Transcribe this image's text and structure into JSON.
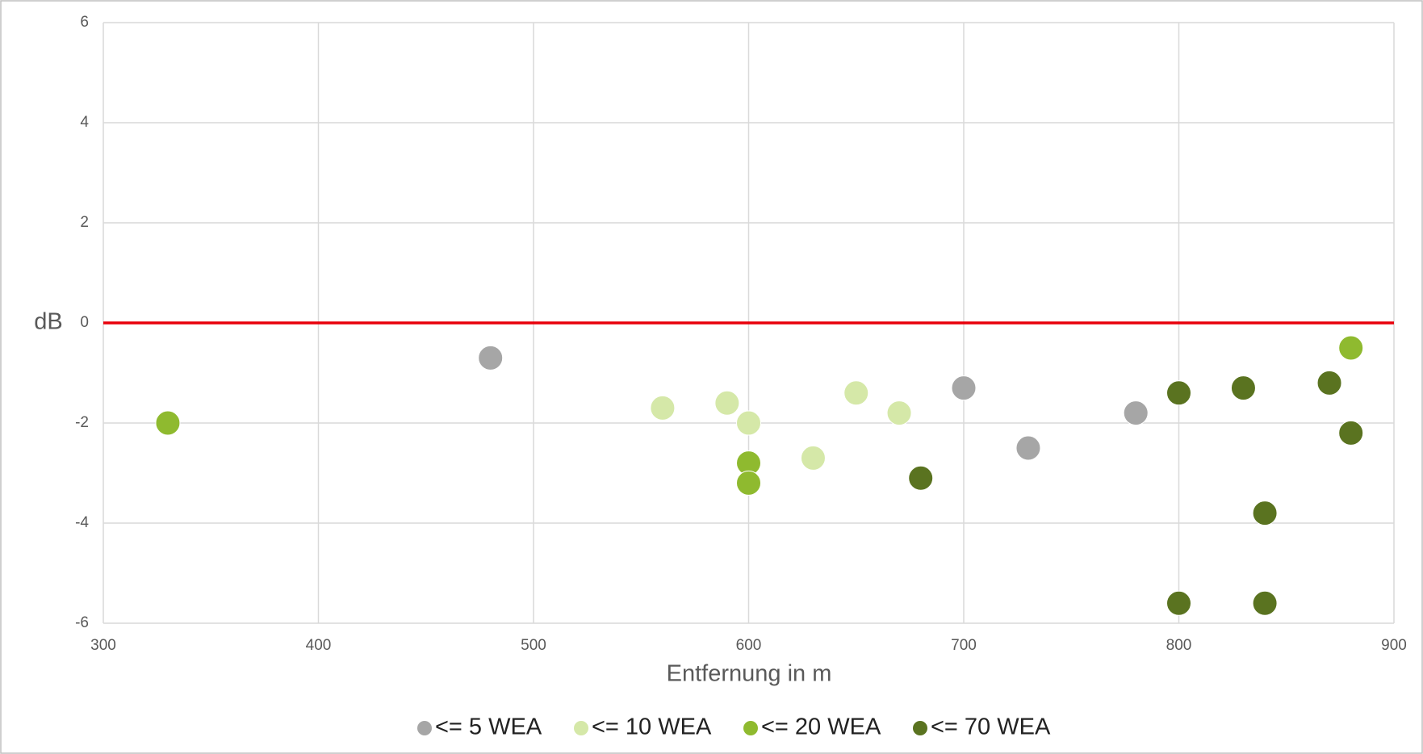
{
  "chart_data": {
    "type": "scatter",
    "x_label": "Entfernung in m",
    "y_label": "dB",
    "xlim": [
      300,
      900
    ],
    "xticks": [
      300,
      400,
      500,
      600,
      700,
      800,
      900
    ],
    "ylim": [
      -6,
      6
    ],
    "yticks": [
      -6,
      -4,
      -2,
      0,
      2,
      4,
      6
    ],
    "grid": true,
    "reference_line": {
      "y": 0,
      "color": "#e8000b"
    },
    "legend": "bottom",
    "series": [
      {
        "name": "<= 5 WEA",
        "color": "#a6a6a6",
        "x": [
          480,
          700,
          730,
          780
        ],
        "y": [
          -0.7,
          -1.3,
          -2.5,
          -1.8
        ]
      },
      {
        "name": "<= 10 WEA",
        "color": "#d5e8a8",
        "x": [
          560,
          590,
          600,
          630,
          650,
          670
        ],
        "y": [
          -1.7,
          -1.6,
          -2.0,
          -2.7,
          -1.4,
          -1.8
        ]
      },
      {
        "name": "<= 20 WEA",
        "color": "#8fba2f",
        "x": [
          330,
          600,
          600,
          880
        ],
        "y": [
          -2.0,
          -2.8,
          -3.2,
          -0.5
        ]
      },
      {
        "name": "<= 70 WEA",
        "color": "#5a7320",
        "x": [
          680,
          800,
          830,
          870,
          880,
          840,
          800,
          840
        ],
        "y": [
          -3.1,
          -1.4,
          -1.3,
          -1.2,
          -2.2,
          -3.8,
          -5.6,
          -5.6
        ]
      }
    ]
  }
}
